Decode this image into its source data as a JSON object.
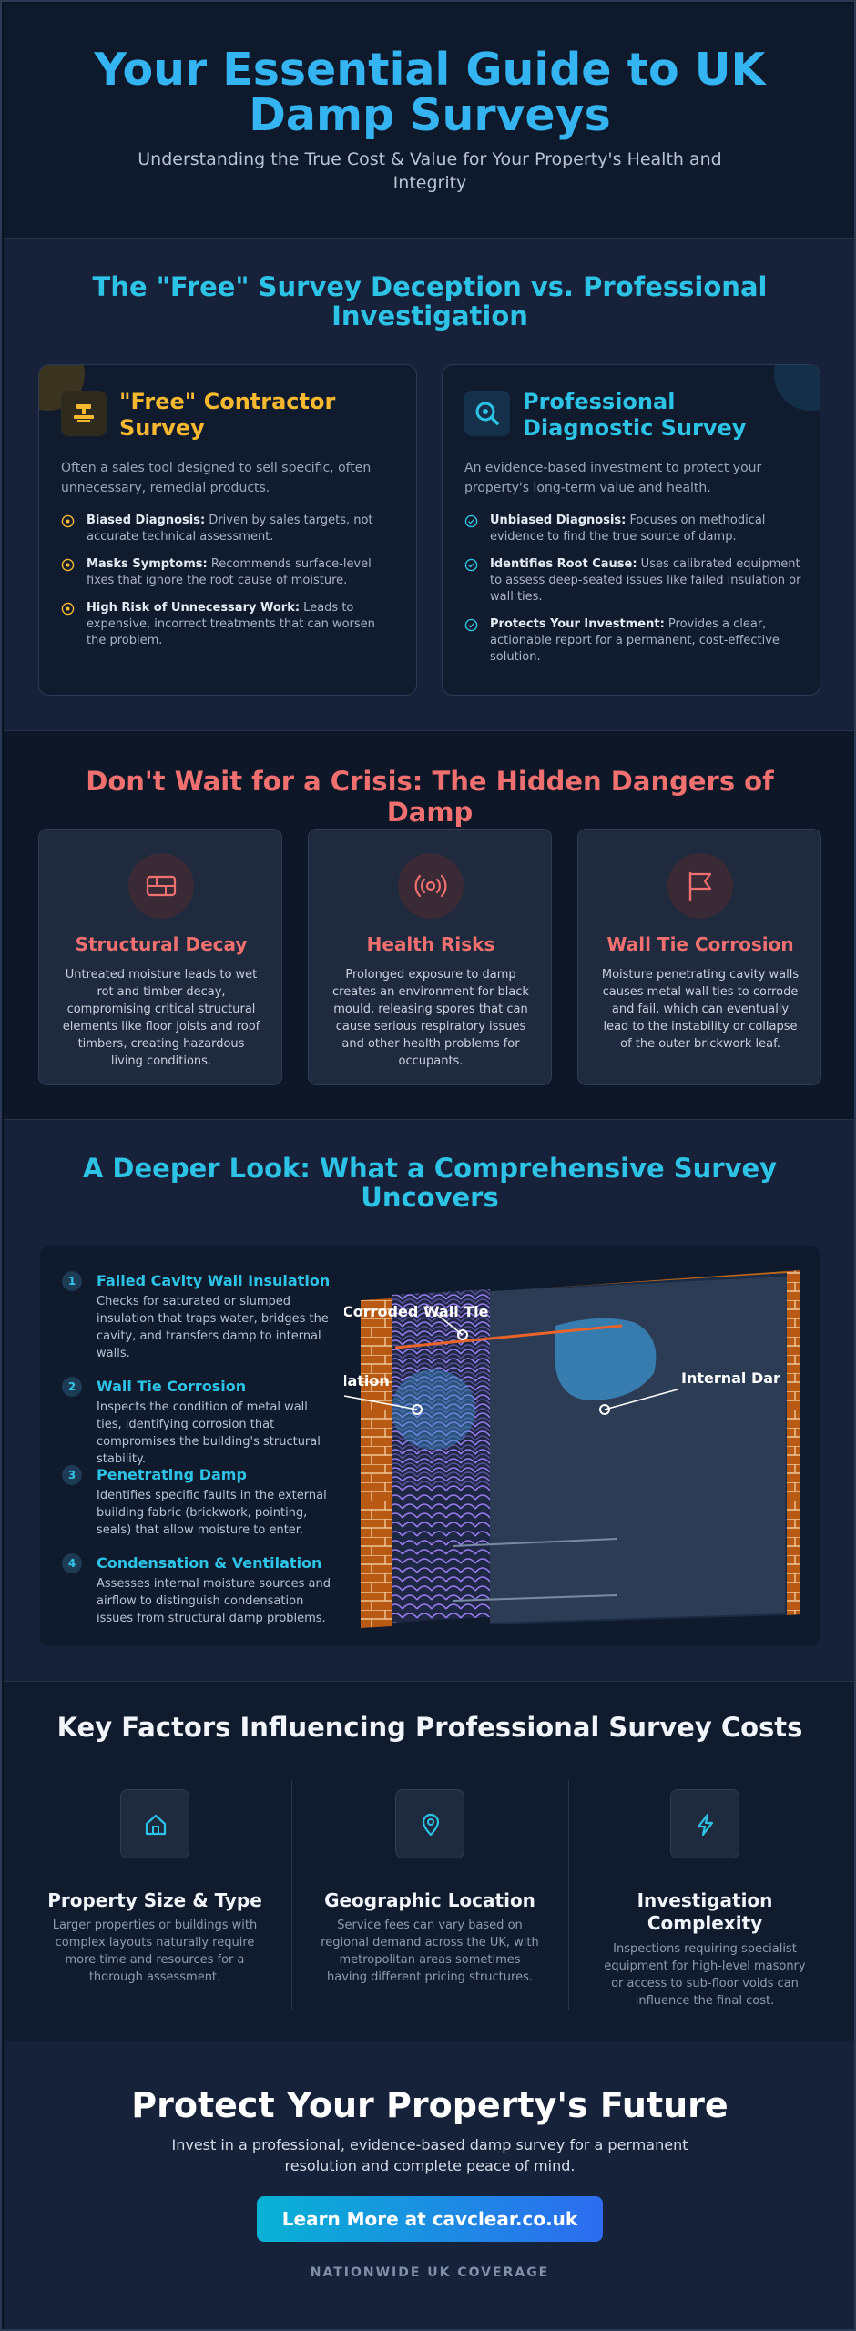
{
  "header": {
    "title": "Your Essential Guide to UK Damp Surveys",
    "subtitle": "Understanding the True Cost & Value for Your Property's Health and Integrity"
  },
  "comparison": {
    "heading": "The \"Free\" Survey Deception vs. Professional Investigation",
    "free": {
      "title": "\"Free\" Contractor Survey",
      "intro": "Often a sales tool designed to sell specific, often unnecessary, remedial products.",
      "points": [
        {
          "label": "Biased Diagnosis:",
          "text": " Driven by sales targets, not accurate technical assessment."
        },
        {
          "label": "Masks Symptoms:",
          "text": " Recommends surface-level fixes that ignore the root cause of moisture."
        },
        {
          "label": "High Risk of Unnecessary Work:",
          "text": " Leads to expensive, incorrect treatments that can worsen the problem."
        }
      ],
      "accent": "#f5b82e"
    },
    "pro": {
      "title": "Professional Diagnostic Survey",
      "intro": "An evidence-based investment to protect your property's long-term value and health.",
      "points": [
        {
          "label": "Unbiased Diagnosis:",
          "text": " Focuses on methodical evidence to find the true source of damp."
        },
        {
          "label": "Identifies Root Cause:",
          "text": " Uses calibrated equipment to assess deep-seated issues like failed insulation or wall ties."
        },
        {
          "label": "Protects Your Investment:",
          "text": " Provides a clear, actionable report for a permanent, cost-effective solution."
        }
      ],
      "accent": "#2dc3e6"
    }
  },
  "dangers": {
    "heading": "Don't Wait for a Crisis: The Hidden Dangers of Damp",
    "cards": [
      {
        "icon": "structure-icon",
        "title": "Structural Decay",
        "text": "Untreated moisture leads to wet rot and timber decay, compromising critical structural elements like floor joists and roof timbers, creating hazardous living conditions."
      },
      {
        "icon": "broadcast-icon",
        "title": "Health Risks",
        "text": "Prolonged exposure to damp creates an environment for black mould, releasing spores that can cause serious respiratory issues and other health problems for occupants."
      },
      {
        "icon": "flag-icon",
        "title": "Wall Tie Corrosion",
        "text": "Moisture penetrating cavity walls causes metal wall ties to corrode and fail, which can eventually lead to the instability or collapse of the outer brickwork leaf."
      }
    ],
    "accent": "#f07070"
  },
  "deeper": {
    "heading": "A Deeper Look: What a Comprehensive Survey Uncovers",
    "items": [
      {
        "num": "1",
        "title": "Failed Cavity Wall Insulation",
        "text": "Checks for saturated or slumped insulation that traps water, bridges the cavity, and transfers damp to internal walls."
      },
      {
        "num": "2",
        "title": "Wall Tie Corrosion",
        "text": "Inspects the condition of metal wall ties, identifying corrosion that compromises the building's structural stability."
      },
      {
        "num": "3",
        "title": "Penetrating Damp",
        "text": "Identifies specific faults in the external building fabric (brickwork, pointing, seals) that allow moisture to enter."
      },
      {
        "num": "4",
        "title": "Condensation & Ventilation",
        "text": "Assesses internal moisture sources and airflow to distinguish condensation issues from structural damp problems."
      }
    ],
    "diagram_labels": {
      "tie": "Corroded Wall Tie",
      "insulation": "lation",
      "damp": "Internal Dar"
    }
  },
  "factors": {
    "heading": "Key Factors Influencing Professional Survey Costs",
    "items": [
      {
        "icon": "home-icon",
        "title": "Property Size & Type",
        "text": "Larger properties or buildings with complex layouts naturally require more time and resources for a thorough assessment."
      },
      {
        "icon": "location-pin-icon",
        "title": "Geographic Location",
        "text": "Service fees can vary based on regional demand across the UK, with metropolitan areas sometimes having different pricing structures."
      },
      {
        "icon": "lightning-icon",
        "title": "Investigation Complexity",
        "text": "Inspections requiring specialist equipment for high-level masonry or access to sub-floor voids can influence the final cost."
      }
    ]
  },
  "cta": {
    "heading": "Protect Your Property's Future",
    "text": "Invest in a professional, evidence-based damp survey for a permanent resolution and complete peace of mind.",
    "button": "Learn More at cavclear.co.uk",
    "coverage": "NATIONWIDE UK COVERAGE"
  }
}
